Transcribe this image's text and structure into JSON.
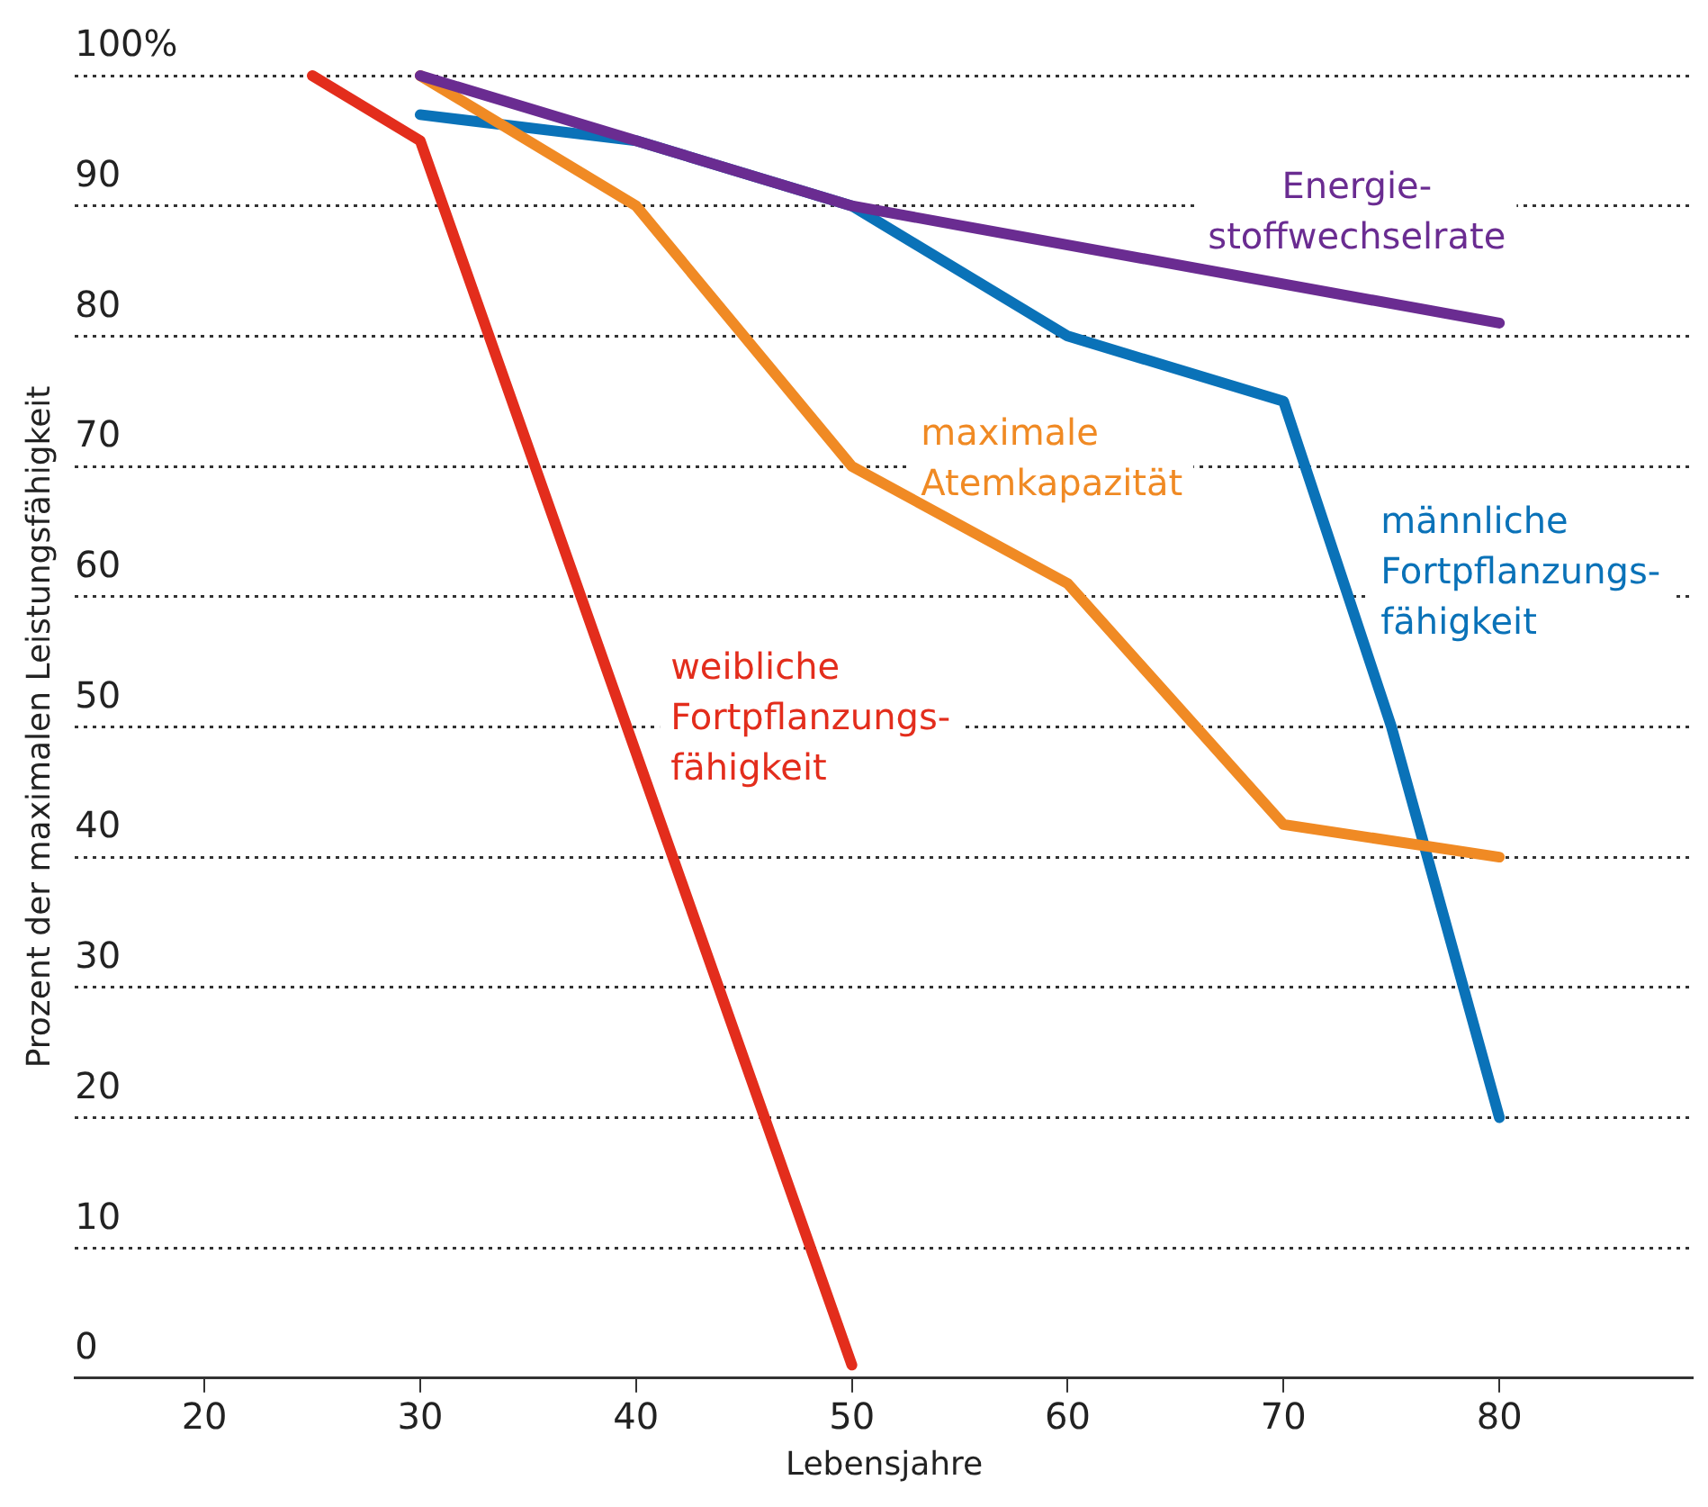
{
  "chart_data": {
    "type": "line",
    "xlabel": "Lebensjahre",
    "ylabel": "Prozent der maximalen Leistungsfähigkeit",
    "xlim": [
      14,
      89
    ],
    "xticks": [
      20,
      30,
      40,
      50,
      60,
      70,
      80
    ],
    "ylim": [
      0,
      100
    ],
    "yticks": [
      0,
      10,
      20,
      30,
      40,
      50,
      60,
      70,
      80,
      90,
      {
        "value": 100,
        "label": "100%"
      }
    ],
    "grid": "y",
    "legend": false,
    "marker": "none",
    "line_style": "solid",
    "series": [
      {
        "name": "weibliche\nFortpflanzungs-\nfähigkeit",
        "color": "#e32d1c",
        "x": [
          25,
          30,
          50
        ],
        "values": [
          100,
          95,
          1
        ]
      },
      {
        "name": "Energie-\nstoffwechselrate",
        "color": "#6a2c91",
        "x": [
          30,
          50,
          80
        ],
        "values": [
          100,
          90,
          81
        ]
      },
      {
        "name": "maximale\nAtemkapazität",
        "color": "#f08a24",
        "x": [
          30,
          40,
          50,
          60,
          70,
          80
        ],
        "values": [
          100,
          90,
          70,
          61,
          42.5,
          40
        ]
      },
      {
        "name": "männliche\nFortpflanzungs-\nfähigkeit",
        "color": "#0a72b8",
        "x": [
          30,
          40,
          50,
          60,
          70,
          75,
          80
        ],
        "values": [
          97,
          95,
          90,
          80,
          75,
          50,
          20
        ]
      }
    ]
  }
}
